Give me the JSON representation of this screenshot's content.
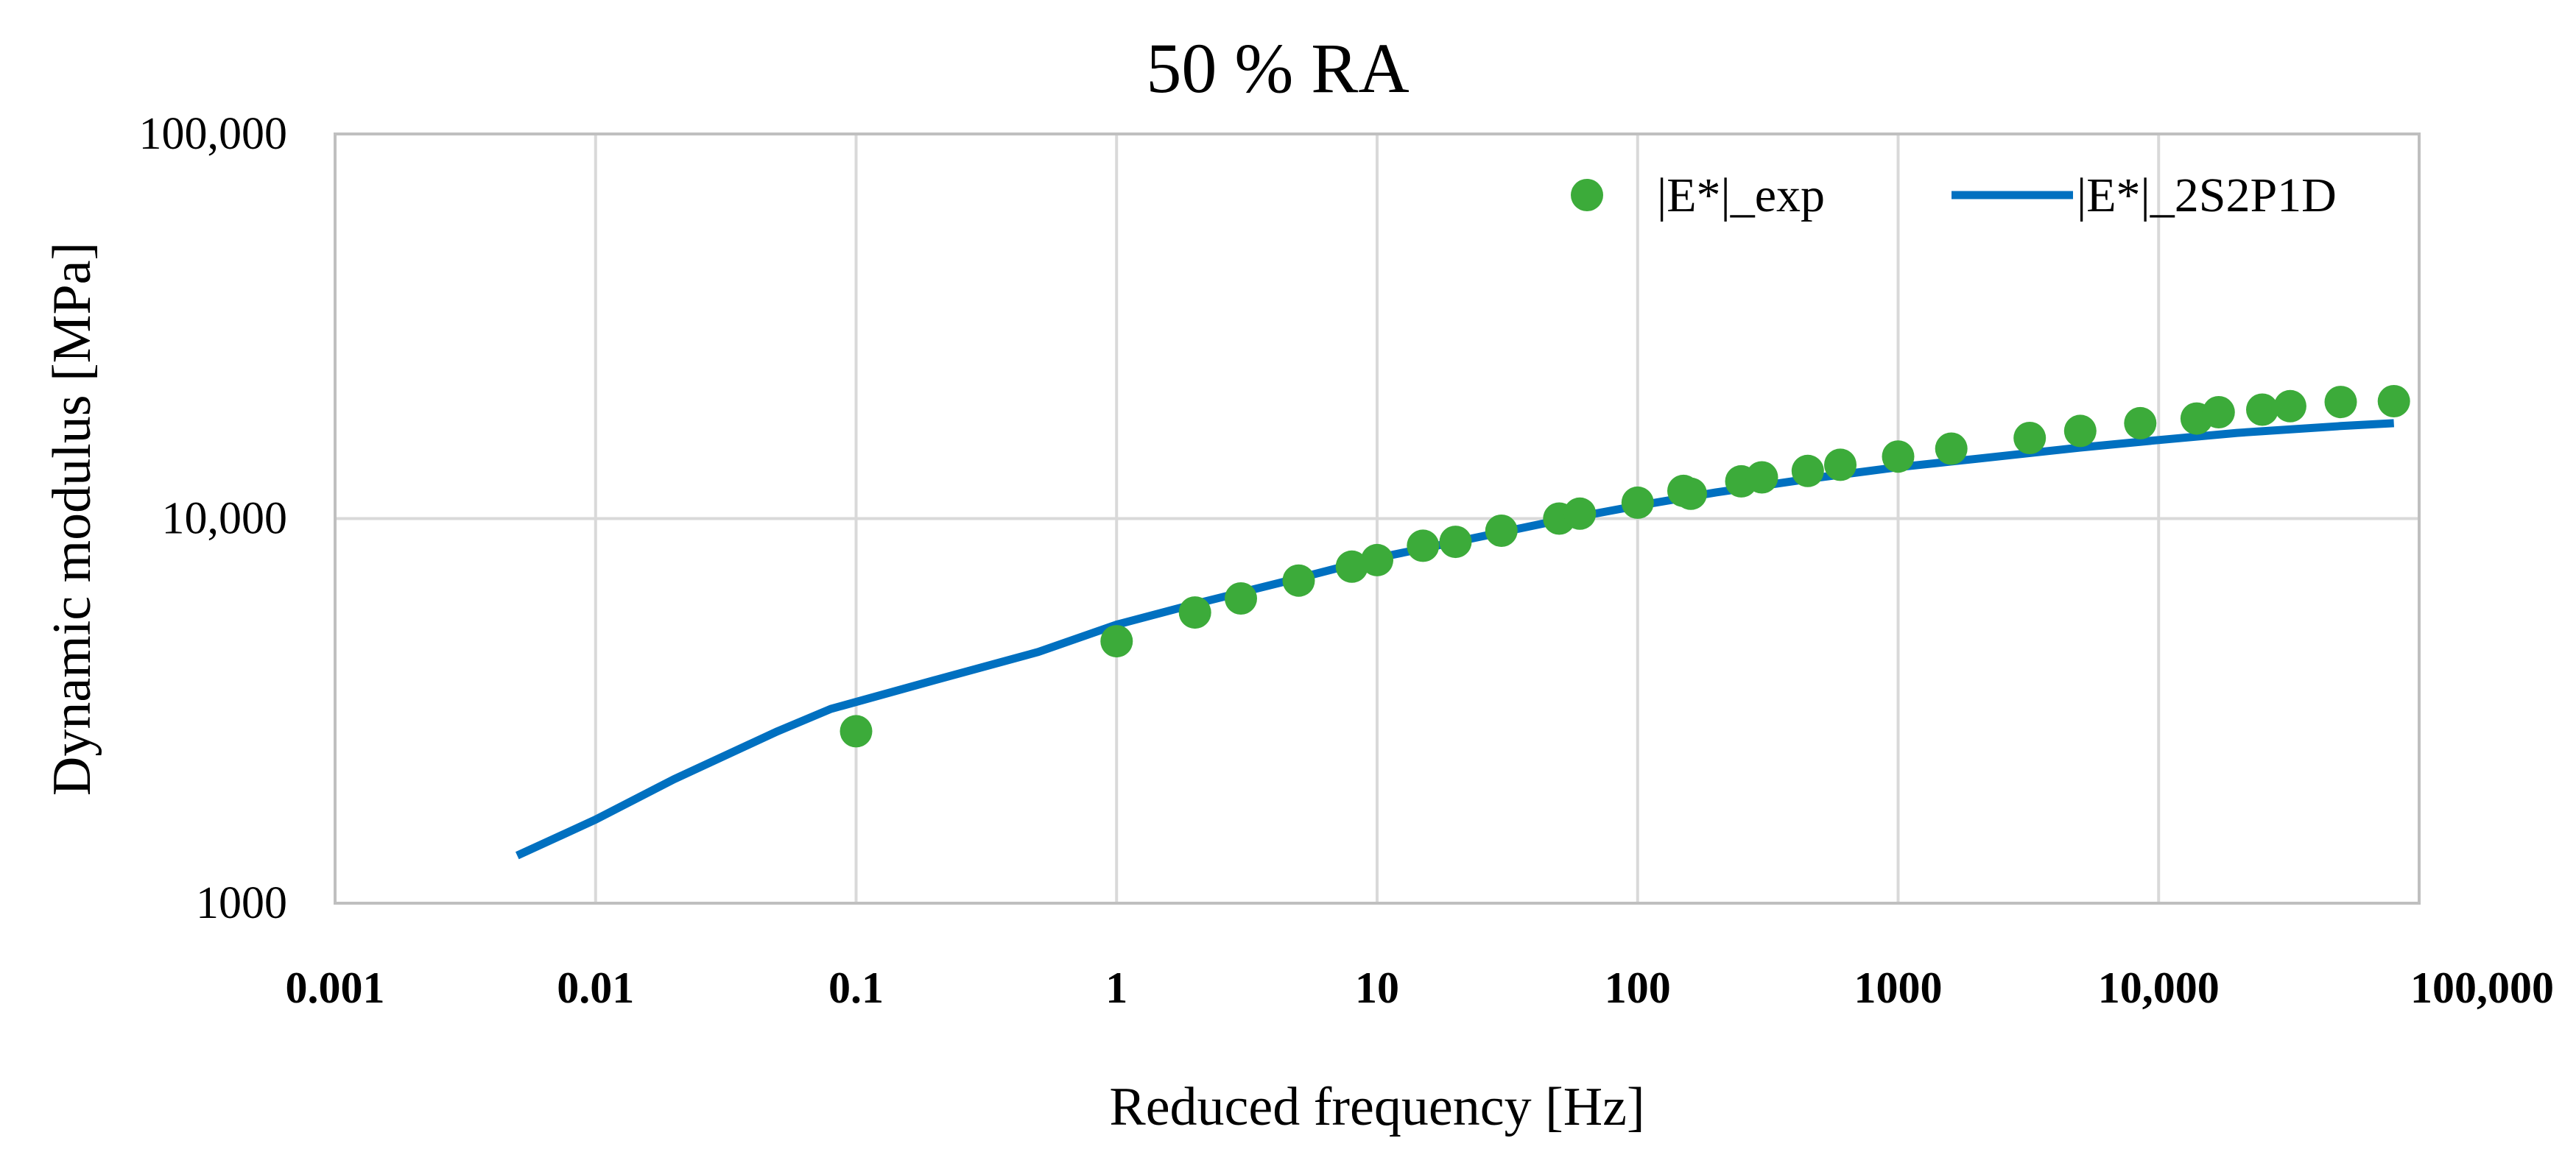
{
  "chart_data": {
    "type": "scatter",
    "title": "50 % RA",
    "xlabel": "Reduced frequency  [Hz]",
    "ylabel": "Dynamic modulus [MPa]",
    "xscale": "log",
    "yscale": "log",
    "xlim": [
      0.001,
      100000
    ],
    "ylim": [
      1000,
      100000
    ],
    "grid": true,
    "legend_position": "top-right",
    "x_tick_labels": [
      "0.001",
      "0.01",
      "0.1",
      "1",
      "10",
      "100",
      "1000",
      "10,000",
      "100,000"
    ],
    "x_ticks": [
      0.001,
      0.01,
      0.1,
      1,
      10,
      100,
      1000,
      10000,
      100000
    ],
    "y_tick_labels": [
      "1000",
      "10,000",
      "100,000"
    ],
    "y_ticks": [
      1000,
      10000,
      100000
    ],
    "series": [
      {
        "name": "|E*|_exp",
        "kind": "scatter",
        "color": "#3cab3a",
        "points": [
          [
            0.1,
            2800
          ],
          [
            1,
            4800
          ],
          [
            2,
            5700
          ],
          [
            3,
            6200
          ],
          [
            5,
            6900
          ],
          [
            8,
            7500
          ],
          [
            10,
            7800
          ],
          [
            15,
            8500
          ],
          [
            20,
            8700
          ],
          [
            30,
            9300
          ],
          [
            50,
            10000
          ],
          [
            60,
            10300
          ],
          [
            100,
            11000
          ],
          [
            150,
            11800
          ],
          [
            160,
            11600
          ],
          [
            250,
            12500
          ],
          [
            300,
            12800
          ],
          [
            450,
            13300
          ],
          [
            600,
            13800
          ],
          [
            1000,
            14500
          ],
          [
            1600,
            15200
          ],
          [
            3200,
            16200
          ],
          [
            5000,
            16900
          ],
          [
            8500,
            17700
          ],
          [
            14000,
            18200
          ],
          [
            17000,
            18900
          ],
          [
            25000,
            19200
          ],
          [
            32000,
            19600
          ],
          [
            50000,
            20100
          ],
          [
            80000,
            20200
          ]
        ]
      },
      {
        "name": "|E*|_2S2P1D",
        "kind": "line",
        "color": "#0070c0",
        "points": [
          [
            0.005,
            1330
          ],
          [
            0.01,
            1650
          ],
          [
            0.02,
            2100
          ],
          [
            0.05,
            2800
          ],
          [
            0.08,
            3200
          ],
          [
            0.2,
            3800
          ],
          [
            0.5,
            4500
          ],
          [
            1,
            5300
          ],
          [
            2,
            6000
          ],
          [
            5,
            7000
          ],
          [
            10,
            7900
          ],
          [
            20,
            8700
          ],
          [
            50,
            9900
          ],
          [
            100,
            10800
          ],
          [
            200,
            11700
          ],
          [
            500,
            12800
          ],
          [
            1000,
            13600
          ],
          [
            2000,
            14300
          ],
          [
            5000,
            15300
          ],
          [
            10000,
            16000
          ],
          [
            20000,
            16700
          ],
          [
            50000,
            17400
          ],
          [
            80000,
            17700
          ]
        ]
      }
    ]
  }
}
